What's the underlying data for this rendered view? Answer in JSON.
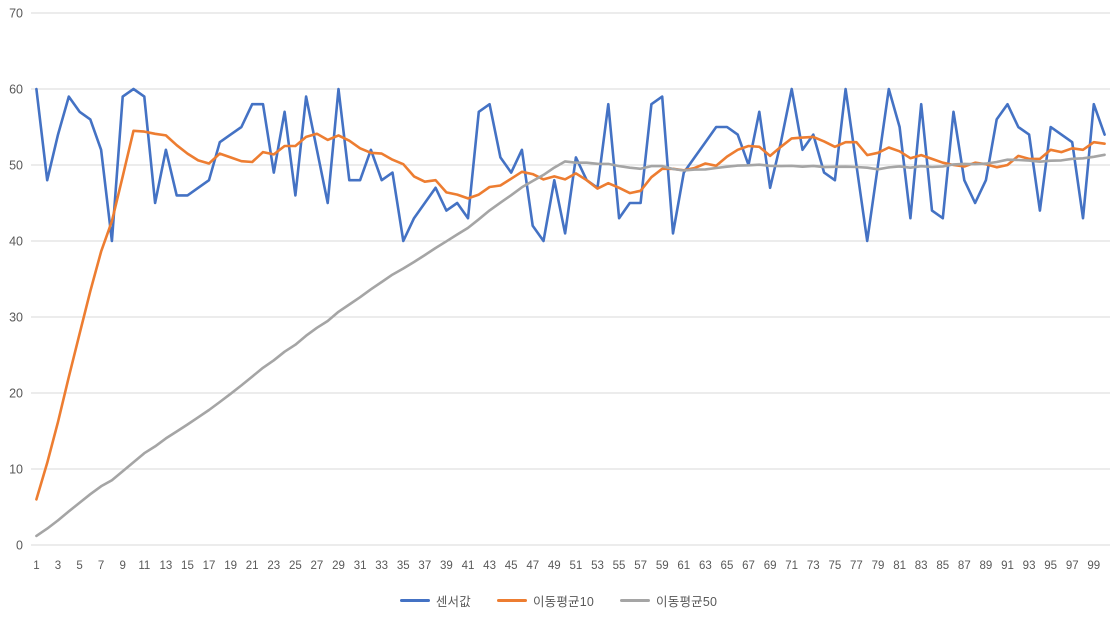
{
  "chart_data": {
    "type": "line",
    "title": "",
    "xlabel": "",
    "ylabel": "",
    "x_count": 100,
    "x_tick_labels": [
      "1",
      "3",
      "5",
      "7",
      "9",
      "11",
      "13",
      "15",
      "17",
      "19",
      "21",
      "23",
      "25",
      "27",
      "29",
      "31",
      "33",
      "35",
      "37",
      "39",
      "41",
      "43",
      "45",
      "47",
      "49",
      "51",
      "53",
      "55",
      "57",
      "59",
      "61",
      "63",
      "65",
      "67",
      "69",
      "71",
      "73",
      "75",
      "77",
      "79",
      "81",
      "83",
      "85",
      "87",
      "89",
      "91",
      "93",
      "95",
      "97",
      "99"
    ],
    "y_ticks": [
      0,
      10,
      20,
      30,
      40,
      50,
      60,
      70
    ],
    "ylim": [
      0,
      70
    ],
    "grid": "horizontal",
    "gridline_color": "#D9D9D9",
    "tick_label_color": "#595959",
    "background_color": "#FFFFFF",
    "legend_position": "bottom-center",
    "series": [
      {
        "id": "sensor",
        "name": "센서값",
        "color": "#4472C4",
        "values": [
          60,
          48,
          54,
          59,
          57,
          56,
          52,
          40,
          59,
          60,
          59,
          45,
          52,
          46,
          46,
          47,
          48,
          53,
          54,
          55,
          58,
          58,
          49,
          57,
          46,
          59,
          52,
          45,
          60,
          48,
          48,
          52,
          48,
          49,
          40,
          43,
          45,
          47,
          44,
          45,
          43,
          57,
          58,
          51,
          49,
          52,
          42,
          40,
          48,
          41,
          51,
          48,
          47,
          58,
          43,
          45,
          45,
          58,
          59,
          41,
          49,
          51,
          53,
          55,
          55,
          54,
          50,
          57,
          47,
          53,
          60,
          52,
          54,
          49,
          48,
          60,
          50,
          40,
          50,
          60,
          55,
          43,
          58,
          44,
          43,
          57,
          48,
          45,
          48,
          56,
          58,
          55,
          54,
          44,
          55,
          54,
          53,
          43,
          58,
          54
        ]
      },
      {
        "id": "ma10",
        "name": "이동평균10",
        "color": "#ED7D31",
        "values": [
          6,
          10.8,
          16.2,
          22.1,
          27.8,
          33.4,
          38.6,
          42.6,
          48.5,
          54.5,
          54.4,
          54.1,
          53.9,
          52.6,
          51.5,
          50.6,
          50.2,
          51.5,
          51,
          50.5,
          50.4,
          51.7,
          51.4,
          52.5,
          52.5,
          53.7,
          54.1,
          53.3,
          53.9,
          53.2,
          52.2,
          51.6,
          51.5,
          50.7,
          50.1,
          48.5,
          47.8,
          48,
          46.4,
          46.1,
          45.6,
          46.1,
          47.1,
          47.3,
          48.2,
          49.1,
          48.8,
          48.1,
          48.5,
          48.1,
          48.9,
          48,
          46.9,
          47.6,
          47,
          46.3,
          46.6,
          48.4,
          49.5,
          49.5,
          49.3,
          49.6,
          50.2,
          49.9,
          51.1,
          52,
          52.5,
          52.4,
          51.2,
          52.4,
          53.5,
          53.6,
          53.7,
          53.1,
          52.4,
          53,
          53,
          51.3,
          51.6,
          52.3,
          51.8,
          50.9,
          51.3,
          50.8,
          50.3,
          50,
          49.8,
          50.3,
          50.1,
          49.7,
          50,
          51.2,
          50.8,
          50.8,
          52,
          51.7,
          52.2,
          52,
          53,
          52.8
        ]
      },
      {
        "id": "ma50",
        "name": "이동평균50",
        "color": "#A5A5A5",
        "values": [
          1.2,
          2.16,
          3.24,
          4.42,
          5.56,
          6.68,
          7.72,
          8.52,
          9.7,
          10.9,
          12.08,
          12.98,
          14.02,
          14.94,
          15.86,
          16.8,
          17.76,
          18.82,
          19.9,
          21,
          22.16,
          23.32,
          24.3,
          25.44,
          26.36,
          27.54,
          28.58,
          29.48,
          30.68,
          31.64,
          32.6,
          33.64,
          34.6,
          35.58,
          36.38,
          37.24,
          38.14,
          39.08,
          39.96,
          40.86,
          41.72,
          42.86,
          44.02,
          45.04,
          46.02,
          47.06,
          47.9,
          48.7,
          49.66,
          50.48,
          50.3,
          50.3,
          50.16,
          50.14,
          49.86,
          49.64,
          49.5,
          49.86,
          49.86,
          49.48,
          49.28,
          49.4,
          49.42,
          49.6,
          49.78,
          49.92,
          49.96,
          50.04,
          49.9,
          49.86,
          49.9,
          49.78,
          49.88,
          49.72,
          49.76,
          49.78,
          49.74,
          49.64,
          49.44,
          49.68,
          49.82,
          49.64,
          49.84,
          49.74,
          49.8,
          50.08,
          50.14,
          50.1,
          50.18,
          50.4,
          50.7,
          50.66,
          50.58,
          50.44,
          50.56,
          50.6,
          50.82,
          50.88,
          51.08,
          51.34
        ]
      }
    ]
  }
}
